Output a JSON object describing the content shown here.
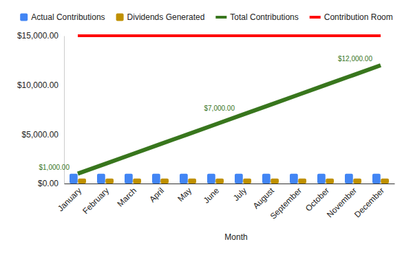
{
  "chart_data": {
    "type": "combo",
    "x_label": "Month",
    "categories": [
      "January",
      "February",
      "March",
      "April",
      "May",
      "June",
      "July",
      "August",
      "September",
      "October",
      "November",
      "December"
    ],
    "series": [
      {
        "name": "Actual Contributions",
        "type": "bar",
        "color": "#4285f4",
        "values": [
          1000,
          1000,
          1000,
          1000,
          1000,
          1000,
          1000,
          1000,
          1000,
          1000,
          1000,
          1000
        ]
      },
      {
        "name": "Dividends Generated",
        "type": "bar",
        "color": "#bf9000",
        "values": [
          500,
          500,
          500,
          500,
          500,
          500,
          500,
          500,
          500,
          500,
          500,
          500
        ]
      },
      {
        "name": "Total Contributions",
        "type": "line",
        "color": "#38761d",
        "data_labels": true,
        "values": [
          1000,
          2000,
          3000,
          4000,
          5000,
          6000,
          7000,
          8000,
          9000,
          10000,
          11000,
          12000
        ],
        "value_labels": [
          "$1,000.00",
          null,
          null,
          null,
          null,
          null,
          "$7,000.00",
          null,
          null,
          null,
          null,
          "$12,000.00"
        ]
      },
      {
        "name": "Contribution Room",
        "type": "line",
        "color": "#ff0000",
        "values": [
          15000,
          15000,
          15000,
          15000,
          15000,
          15000,
          15000,
          15000,
          15000,
          15000,
          15000,
          15000
        ]
      }
    ],
    "ylim": [
      0,
      15000
    ],
    "yticks": [
      {
        "value": 0,
        "label": "$0.00"
      },
      {
        "value": 5000,
        "label": "$5,000.00"
      },
      {
        "value": 10000,
        "label": "$10,000.00"
      },
      {
        "value": 15000,
        "label": "$15,000.00"
      }
    ],
    "grid": false,
    "legend": "top"
  }
}
